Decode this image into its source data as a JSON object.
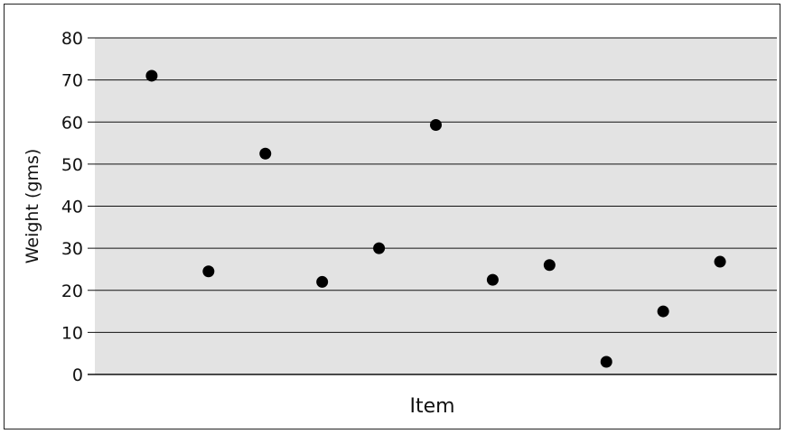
{
  "chart_data": {
    "type": "scatter",
    "title": "",
    "xlabel": "Item",
    "ylabel": "Weight (gms)",
    "ylim": [
      0,
      80
    ],
    "yticks": [
      0,
      10,
      20,
      30,
      40,
      50,
      60,
      70,
      80
    ],
    "grid": true,
    "legend": "none",
    "x": [
      1,
      2,
      3,
      4,
      5,
      6,
      7,
      8,
      9,
      10,
      11
    ],
    "y": [
      71,
      24.5,
      52.5,
      22,
      30,
      59.3,
      22.5,
      26,
      3,
      15,
      26.8
    ],
    "colors": {
      "plot_background": "#e3e3e3",
      "gridline": "#111111",
      "marker": "#000000"
    }
  }
}
